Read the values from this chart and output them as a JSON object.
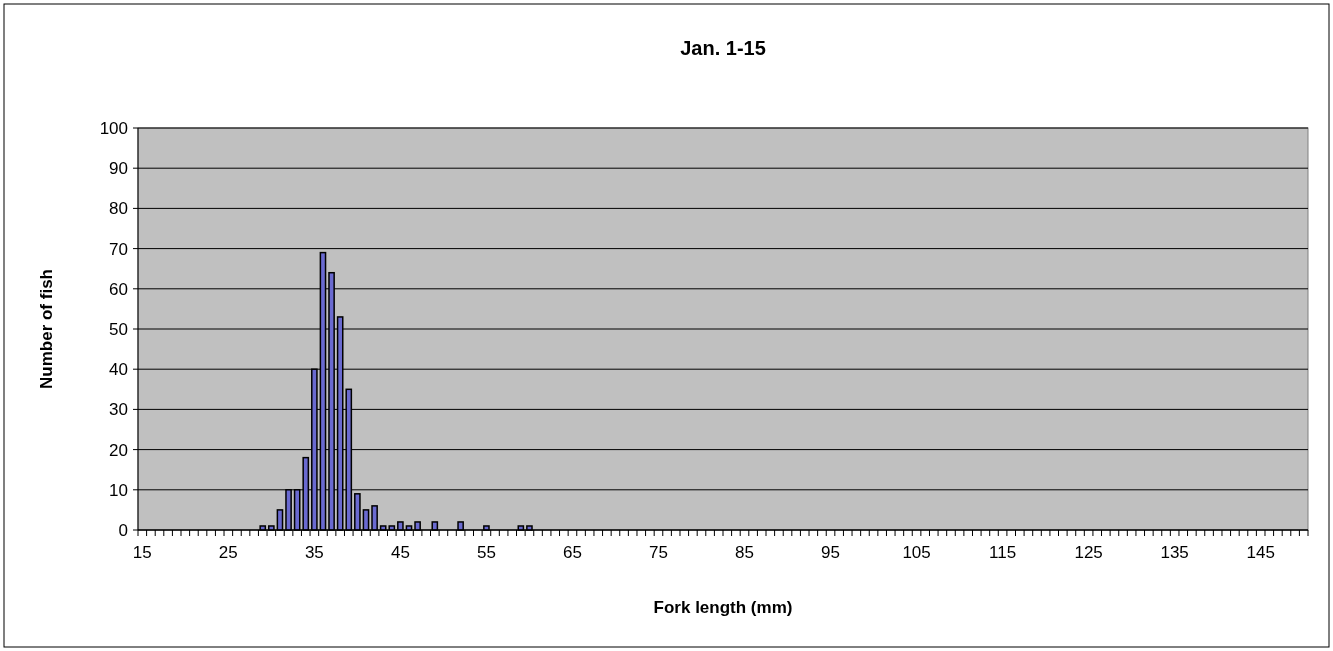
{
  "chart_data": {
    "type": "bar",
    "title": "Jan. 1-15",
    "xlabel": "Fork length (mm)",
    "ylabel": "Number of fish",
    "categories": [
      "15",
      null,
      null,
      null,
      null,
      null,
      null,
      null,
      null,
      null,
      "25",
      null,
      null,
      null,
      null,
      null,
      null,
      null,
      null,
      null,
      "35",
      null,
      null,
      null,
      null,
      null,
      null,
      null,
      null,
      null,
      "45",
      null,
      null,
      null,
      null,
      null,
      null,
      null,
      null,
      null,
      "55",
      null,
      null,
      null,
      null,
      null,
      null,
      null,
      null,
      null,
      "65",
      null,
      null,
      null,
      null,
      null,
      null,
      null,
      null,
      null,
      "75",
      null,
      null,
      null,
      null,
      null,
      null,
      null,
      null,
      null,
      "85",
      null,
      null,
      null,
      null,
      null,
      null,
      null,
      null,
      null,
      "95",
      null,
      null,
      null,
      null,
      null,
      null,
      null,
      null,
      null,
      "105",
      null,
      null,
      null,
      null,
      null,
      null,
      null,
      null,
      null,
      "115",
      null,
      null,
      null,
      null,
      null,
      null,
      null,
      null,
      null,
      "125",
      null,
      null,
      null,
      null,
      null,
      null,
      null,
      null,
      null,
      "135",
      null,
      null,
      null,
      null,
      null,
      null,
      null,
      null,
      null,
      "145",
      null,
      null,
      null,
      null,
      null
    ],
    "values": [
      0,
      0,
      0,
      0,
      0,
      0,
      0,
      0,
      0,
      0,
      0,
      0,
      0,
      0,
      1,
      1,
      5,
      10,
      10,
      18,
      40,
      69,
      64,
      53,
      35,
      9,
      5,
      6,
      1,
      1,
      2,
      1,
      2,
      0,
      2,
      0,
      0,
      2,
      0,
      0,
      1,
      0,
      0,
      0,
      1,
      1,
      0,
      0,
      0,
      0,
      0,
      0,
      0,
      0,
      0,
      0,
      0,
      0,
      0,
      0,
      0,
      0,
      0,
      0,
      0,
      0,
      0,
      0,
      0,
      0,
      0,
      0,
      0,
      0,
      0,
      0,
      0,
      0,
      0,
      0,
      0,
      0,
      0,
      0,
      0,
      0,
      0,
      0,
      0,
      0,
      0,
      0,
      0,
      0,
      0,
      0,
      0,
      0,
      0,
      0,
      0,
      0,
      0,
      0,
      0,
      0,
      0,
      0,
      0,
      0,
      0,
      0,
      0,
      0,
      0,
      0,
      0,
      0,
      0,
      0,
      0,
      0,
      0,
      0,
      0,
      0,
      0,
      0,
      0,
      0,
      0,
      0,
      0,
      0,
      0,
      0
    ],
    "color": "#6a6ad0",
    "ylim": [
      0,
      100
    ],
    "yticks": [
      0,
      10,
      20,
      30,
      40,
      50,
      60,
      70,
      80,
      90,
      100
    ],
    "grid": "y"
  }
}
